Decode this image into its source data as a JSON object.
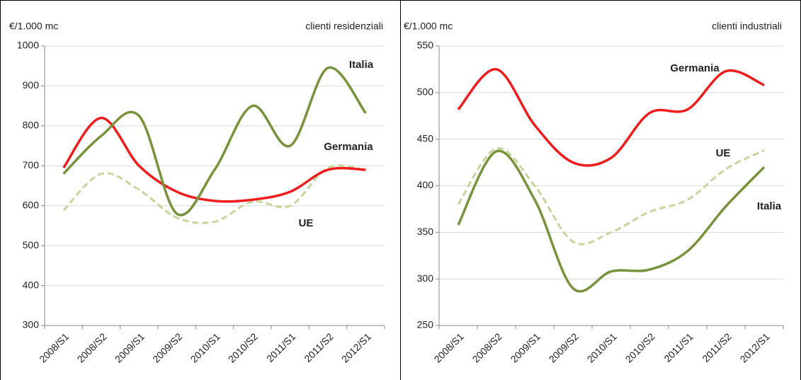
{
  "chart_data": [
    {
      "type": "line",
      "y_label": "€/1.000 mc",
      "title": "clienti residenziali",
      "categories": [
        "2008/S1",
        "2008/S2",
        "2009/S1",
        "2009/S2",
        "2010/S1",
        "2010/S2",
        "2011/S1",
        "2011/S2",
        "2012/S1"
      ],
      "series": [
        {
          "name": "Italia",
          "color": "#77933c",
          "dashed": false,
          "values": [
            680,
            775,
            825,
            580,
            690,
            850,
            750,
            945,
            832
          ]
        },
        {
          "name": "Germania",
          "color": "#ee1c1c",
          "dashed": false,
          "values": [
            695,
            820,
            700,
            635,
            612,
            615,
            635,
            690,
            690
          ]
        },
        {
          "name": "UE",
          "color": "#c3d69b",
          "dashed": true,
          "values": [
            588,
            680,
            640,
            570,
            560,
            610,
            600,
            695,
            690
          ]
        }
      ],
      "ylim": [
        300,
        1000
      ],
      "yticks": [
        300,
        400,
        500,
        600,
        700,
        800,
        900,
        1000
      ],
      "grid": true
    },
    {
      "type": "line",
      "y_label": "€/1.000 mc",
      "title": "clienti industriali",
      "categories": [
        "2008/S1",
        "2008/S2",
        "2009/S1",
        "2009/S2",
        "2010/S1",
        "2010/S2",
        "2011/S1",
        "2011/S2",
        "2012/S1"
      ],
      "series": [
        {
          "name": "Italia",
          "color": "#77933c",
          "dashed": false,
          "values": [
            358,
            437,
            385,
            290,
            308,
            310,
            330,
            378,
            420
          ]
        },
        {
          "name": "Germania",
          "color": "#ee1c1c",
          "dashed": false,
          "values": [
            482,
            525,
            465,
            425,
            430,
            478,
            482,
            523,
            508
          ]
        },
        {
          "name": "UE",
          "color": "#c3d69b",
          "dashed": true,
          "values": [
            380,
            440,
            400,
            340,
            350,
            372,
            385,
            418,
            438
          ]
        }
      ],
      "ylim": [
        250,
        550
      ],
      "yticks": [
        250,
        300,
        350,
        400,
        450,
        500,
        550
      ],
      "grid": true
    }
  ]
}
